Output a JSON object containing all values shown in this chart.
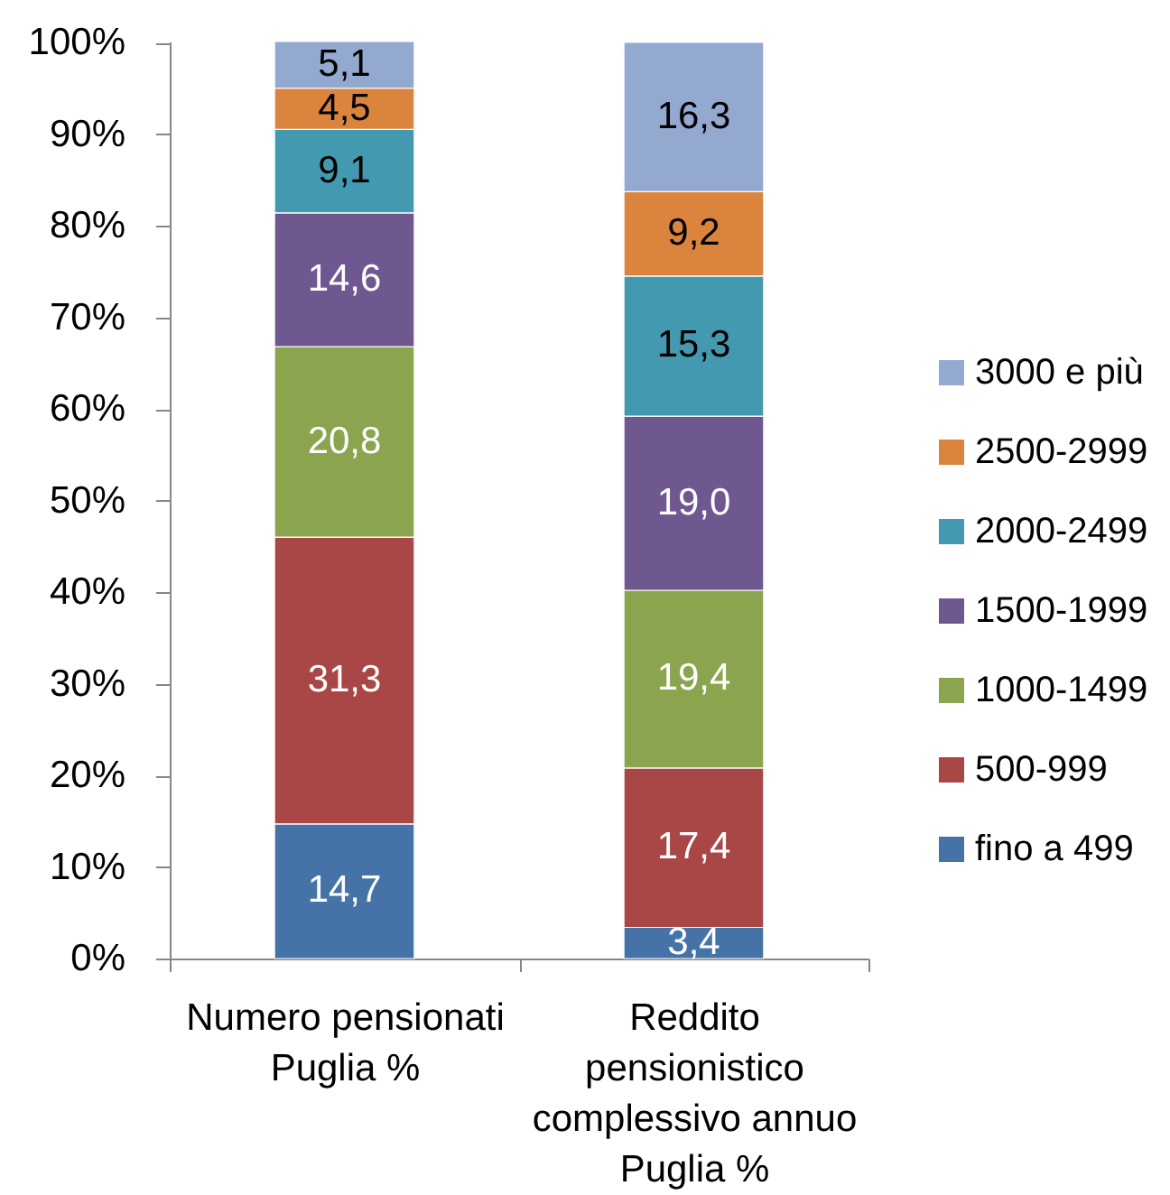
{
  "chart_data": {
    "type": "bar",
    "stacked": true,
    "categories": [
      "Numero pensionati Puglia %",
      "Reddito pensionistico complessivo annuo Puglia %"
    ],
    "series": [
      {
        "name": "fino a 499",
        "color": "#4673a7",
        "values": [
          14.7,
          3.4
        ],
        "value_labels": [
          "14,7",
          "3,4"
        ]
      },
      {
        "name": "500-999",
        "color": "#a84745",
        "values": [
          31.3,
          17.4
        ],
        "value_labels": [
          "31,3",
          "17,4"
        ]
      },
      {
        "name": "1000-1499",
        "color": "#8ba54f",
        "values": [
          20.8,
          19.4
        ],
        "value_labels": [
          "20,8",
          "19,4"
        ]
      },
      {
        "name": "1500-1999",
        "color": "#6f5790",
        "values": [
          14.6,
          19.0
        ],
        "value_labels": [
          "14,6",
          "19,0"
        ]
      },
      {
        "name": "2000-2499",
        "color": "#4299b0",
        "values": [
          9.1,
          15.3
        ],
        "value_labels": [
          "9,1",
          "15,3"
        ]
      },
      {
        "name": "2500-2999",
        "color": "#db843d",
        "values": [
          4.5,
          9.2
        ],
        "value_labels": [
          "4,5",
          "9,2"
        ]
      },
      {
        "name": "3000 e più",
        "color": "#93a9cf",
        "values": [
          5.1,
          16.3
        ],
        "value_labels": [
          "5,1",
          "16,3"
        ]
      }
    ],
    "ylim": [
      0,
      100.1
    ],
    "yticks": [
      {
        "value": 0,
        "label": "0%"
      },
      {
        "value": 10,
        "label": "10%"
      },
      {
        "value": 20,
        "label": "20%"
      },
      {
        "value": 30,
        "label": "30%"
      },
      {
        "value": 40,
        "label": "40%"
      },
      {
        "value": 50,
        "label": "50%"
      },
      {
        "value": 60,
        "label": "60%"
      },
      {
        "value": 70,
        "label": "70%"
      },
      {
        "value": 80,
        "label": "80%"
      },
      {
        "value": 90,
        "label": "90%"
      },
      {
        "value": 100,
        "label": "100%"
      }
    ],
    "legend": "right"
  }
}
